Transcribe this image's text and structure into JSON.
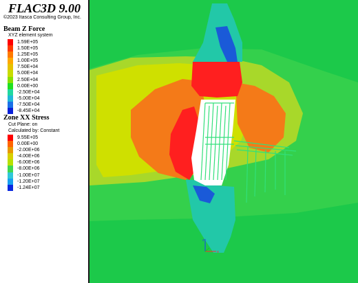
{
  "app": {
    "title": "FLAC3D 9.00",
    "copyright": "©2023 Itasca Consulting Group, Inc."
  },
  "beam_z_force": {
    "title": "Beam Z Force",
    "system": "XYZ element system",
    "legend": [
      {
        "label": "1.59E+05",
        "color": "#ff0000"
      },
      {
        "label": "1.50E+05",
        "color": "#ff3a00"
      },
      {
        "label": "1.25E+05",
        "color": "#ff7a00"
      },
      {
        "label": "1.00E+05",
        "color": "#ffa800"
      },
      {
        "label": "7.50E+04",
        "color": "#e6c200"
      },
      {
        "label": "5.00E+04",
        "color": "#c8dc00"
      },
      {
        "label": "2.50E+04",
        "color": "#88e000"
      },
      {
        "label": "0.00E+00",
        "color": "#20e020"
      },
      {
        "label": "-2.50E+04",
        "color": "#20d8a0"
      },
      {
        "label": "-5.00E+04",
        "color": "#20b8d8"
      },
      {
        "label": "-7.50E+04",
        "color": "#1a70e8"
      },
      {
        "label": "-8.45E+04",
        "color": "#0a20d8"
      }
    ]
  },
  "zone_xx_stress": {
    "title": "Zone XX Stress",
    "cut_plane": "Cut Plane: on",
    "calculated_by": "Calculated by: Constant",
    "legend": [
      {
        "label": "9.55E+05",
        "color": "#ff0000"
      },
      {
        "label": "0.00E+00",
        "color": "#ff6400"
      },
      {
        "label": "-2.00E+06",
        "color": "#e89800"
      },
      {
        "label": "-4.00E+06",
        "color": "#d8d000"
      },
      {
        "label": "-6.00E+06",
        "color": "#b8e000"
      },
      {
        "label": "-8.00E+06",
        "color": "#40d850"
      },
      {
        "label": "-1.00E+07",
        "color": "#30c8d8"
      },
      {
        "label": "-1.20E+07",
        "color": "#18a0f0"
      },
      {
        "label": "-1.24E+07",
        "color": "#0a28e0"
      }
    ]
  },
  "model_colors": {
    "background": "#1cc94a",
    "outer_green": "#34d04c",
    "lime": "#a8d82a",
    "yellow_green": "#cfe000",
    "orange": "#f47a18",
    "red": "#ff1f1f",
    "cyan": "#22c8a8",
    "blue": "#1a5ad8",
    "white": "#ffffff",
    "beam": "#32e07a"
  },
  "axes_icon": "xyz-axes-triad-icon"
}
